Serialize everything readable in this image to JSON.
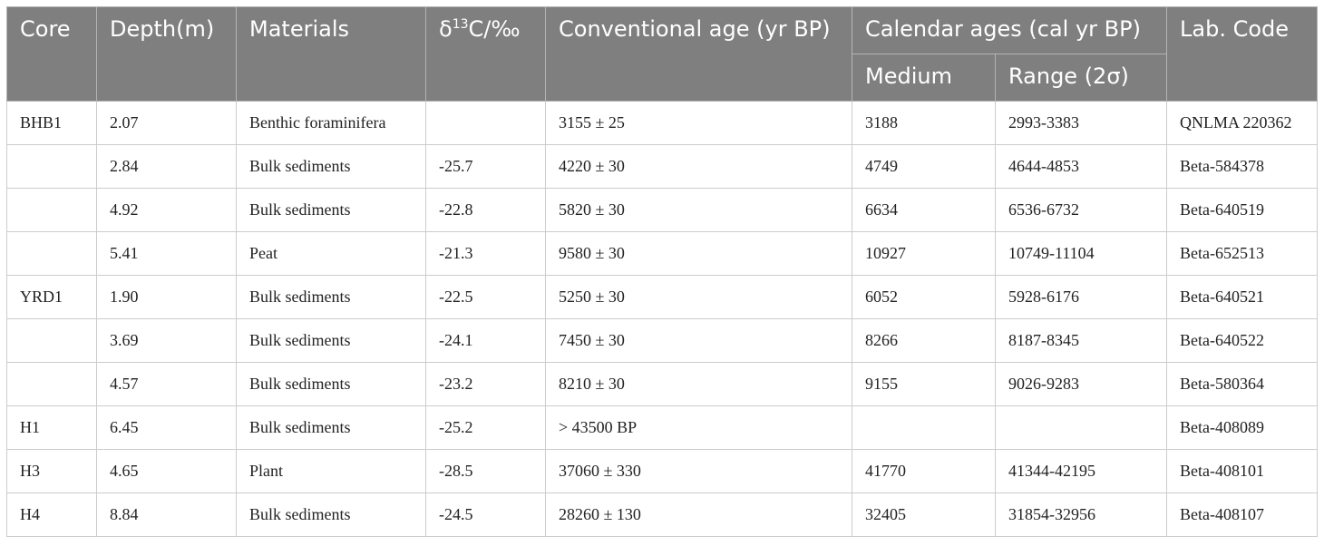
{
  "table": {
    "headers": {
      "core": "Core",
      "depth": "Depth(m)",
      "materials": "Materials",
      "delta_prefix": "δ",
      "delta_sup": "13",
      "delta_suffix": "C/‰",
      "conventional_age": "Conventional age (yr BP)",
      "calendar_ages": "Calendar ages (cal yr BP)",
      "medium": "Medium",
      "range": "Range (2σ)",
      "lab_code": "Lab. Code"
    },
    "rows": [
      [
        "BHB1",
        "2.07",
        "Benthic foraminifera",
        "",
        "3155 ± 25",
        "3188",
        "2993-3383",
        "QNLMA 220362"
      ],
      [
        "",
        "2.84",
        "Bulk sediments",
        "-25.7",
        "4220 ± 30",
        "4749",
        "4644-4853",
        "Beta-584378"
      ],
      [
        "",
        "4.92",
        "Bulk sediments",
        "-22.8",
        "5820 ± 30",
        "6634",
        "6536-6732",
        "Beta-640519"
      ],
      [
        "",
        "5.41",
        "Peat",
        "-21.3",
        "9580 ± 30",
        "10927",
        "10749-11104",
        "Beta-652513"
      ],
      [
        "YRD1",
        "1.90",
        "Bulk sediments",
        "-22.5",
        "5250 ± 30",
        "6052",
        "5928-6176",
        "Beta-640521"
      ],
      [
        "",
        "3.69",
        "Bulk sediments",
        "-24.1",
        "7450 ± 30",
        "8266",
        "8187-8345",
        "Beta-640522"
      ],
      [
        "",
        "4.57",
        "Bulk sediments",
        "-23.2",
        "8210 ± 30",
        "9155",
        "9026-9283",
        "Beta-580364"
      ],
      [
        "H1",
        "6.45",
        "Bulk sediments",
        "-25.2",
        "> 43500 BP",
        "",
        "",
        "Beta-408089"
      ],
      [
        "H3",
        "4.65",
        "Plant",
        "-28.5",
        "37060 ± 330",
        "41770",
        "41344-42195",
        "Beta-408101"
      ],
      [
        "H4",
        "8.84",
        "Bulk sediments",
        "-24.5",
        "28260 ± 130",
        "32405",
        "31854-32956",
        "Beta-408107"
      ]
    ]
  }
}
